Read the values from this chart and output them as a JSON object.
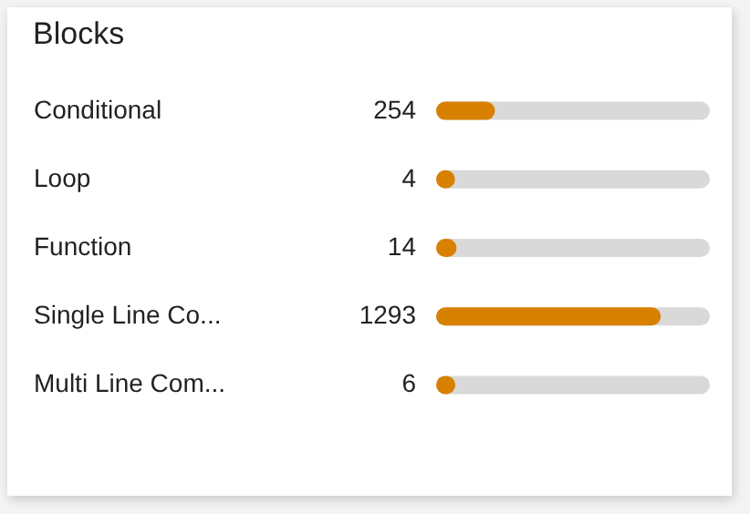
{
  "chart_data": {
    "type": "bar",
    "orientation": "horizontal",
    "title": "Blocks",
    "categories": [
      "Conditional",
      "Loop",
      "Function",
      "Single Line Co...",
      "Multi Line Com..."
    ],
    "series": [
      {
        "color": "#d88000",
        "values": [
          254,
          4,
          14,
          1293,
          6
        ]
      }
    ],
    "xlim": [
      0,
      1600
    ],
    "data_labels": true,
    "legend": false,
    "tick_labels": "y"
  }
}
